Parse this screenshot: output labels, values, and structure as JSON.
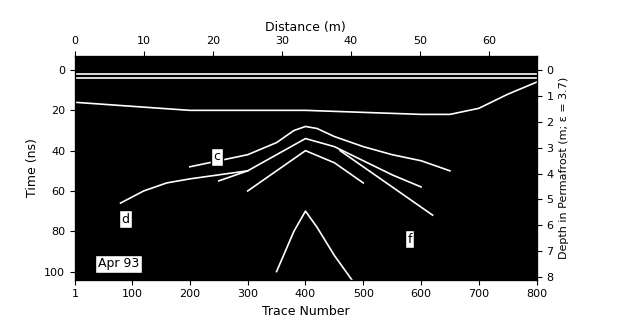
{
  "chart_data": {
    "type": "radargram",
    "xlabel": "Trace Number",
    "xlim": [
      1,
      800
    ],
    "xticks": [
      1,
      100,
      200,
      300,
      400,
      500,
      600,
      700,
      800
    ],
    "x2label": "Distance (m)",
    "x2lim": [
      0,
      66.9
    ],
    "x2ticks": [
      0,
      10,
      20,
      30,
      40,
      50,
      60
    ],
    "ylabel": "Time (ns)",
    "ylim": [
      104,
      -7
    ],
    "yticks": [
      0,
      20,
      40,
      60,
      80,
      100
    ],
    "y2label": "Depth in Permafrost (m; ε = 3.7)",
    "y2lim": [
      8.1,
      -0.55
    ],
    "y2ticks": [
      0,
      1,
      2,
      3,
      4,
      5,
      6,
      7,
      8
    ],
    "background": "#000000",
    "color": "#ffffff",
    "series": [
      {
        "x": [
          1,
          800
        ],
        "values": [
          2,
          2
        ]
      },
      {
        "x": [
          1,
          800
        ],
        "values": [
          4,
          4
        ]
      },
      {
        "x": [
          1,
          100,
          200,
          300,
          400,
          500,
          600,
          650,
          700,
          750,
          800
        ],
        "values": [
          16,
          18,
          20,
          20,
          20,
          21,
          22,
          22,
          19,
          12,
          6
        ]
      },
      {
        "x": [
          200,
          250,
          300,
          350,
          380,
          400,
          420,
          450,
          500,
          550,
          600,
          650
        ],
        "values": [
          48,
          45,
          42,
          36,
          30,
          28,
          29,
          33,
          38,
          42,
          45,
          50
        ]
      },
      {
        "x": [
          250,
          300,
          350,
          400,
          450,
          500,
          550,
          600
        ],
        "values": [
          55,
          50,
          42,
          34,
          38,
          45,
          52,
          58
        ]
      },
      {
        "x": [
          300,
          350,
          400,
          450,
          500
        ],
        "values": [
          60,
          50,
          40,
          46,
          56
        ]
      },
      {
        "x": [
          80,
          120,
          160,
          200,
          250,
          300
        ],
        "values": [
          66,
          60,
          56,
          54,
          52,
          50
        ]
      },
      {
        "x": [
          460,
          500,
          540,
          580,
          620
        ],
        "values": [
          40,
          48,
          56,
          64,
          72
        ]
      },
      {
        "x": [
          350,
          380,
          400,
          420,
          450,
          480
        ],
        "values": [
          100,
          80,
          70,
          78,
          92,
          104
        ]
      }
    ],
    "annotations": [
      "c",
      "d",
      "f",
      "Apr 93"
    ]
  }
}
